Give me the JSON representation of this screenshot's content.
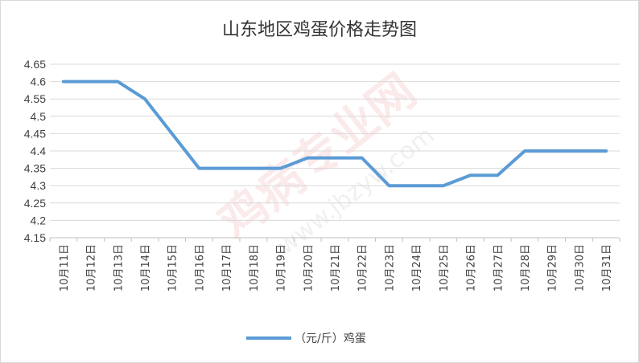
{
  "chart_data": {
    "type": "line",
    "title": "山东地区鸡蛋价格走势图",
    "categories": [
      "10月11日",
      "10月12日",
      "10月13日",
      "10月14日",
      "10月15日",
      "10月16日",
      "10月17日",
      "10月18日",
      "10月19日",
      "10月20日",
      "10月21日",
      "10月22日",
      "10月23日",
      "10月24日",
      "10月25日",
      "10月26日",
      "10月27日",
      "10月28日",
      "10月29日",
      "10月30日",
      "10月31日"
    ],
    "series": [
      {
        "name": "（元/斤）鸡蛋",
        "color": "#5b9bd5",
        "values": [
          4.6,
          4.6,
          4.6,
          4.55,
          4.45,
          4.35,
          4.35,
          4.35,
          4.35,
          4.38,
          4.38,
          4.38,
          4.3,
          4.3,
          4.3,
          4.33,
          4.33,
          4.4,
          4.4,
          4.4,
          4.4
        ]
      }
    ],
    "ylim": [
      4.15,
      4.65
    ],
    "yticks": [
      "4.15",
      "4.2",
      "4.25",
      "4.3",
      "4.35",
      "4.4",
      "4.45",
      "4.5",
      "4.55",
      "4.6",
      "4.65"
    ],
    "grid": true,
    "legend": "bottom-center"
  },
  "watermark": {
    "text_cn": "鸡病专业网",
    "text_url": "www.jbzyw.com"
  }
}
